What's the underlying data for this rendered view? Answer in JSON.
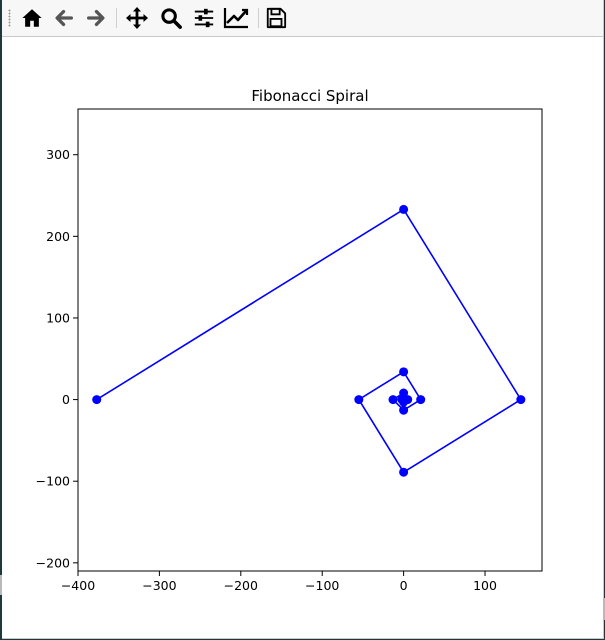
{
  "toolbar": {
    "buttons": [
      {
        "name": "home",
        "icon": "home-icon"
      },
      {
        "name": "back",
        "icon": "arrow-left-icon"
      },
      {
        "name": "forward",
        "icon": "arrow-right-icon"
      },
      {
        "name": "pan",
        "icon": "move-icon"
      },
      {
        "name": "zoom",
        "icon": "magnifier-icon"
      },
      {
        "name": "configure-subplots",
        "icon": "sliders-icon"
      },
      {
        "name": "edit-axis",
        "icon": "line-chart-icon"
      },
      {
        "name": "save",
        "icon": "floppy-disk-icon"
      }
    ]
  },
  "colors": {
    "series": "#0000ff",
    "axes": "#000000",
    "background": "#ffffff"
  },
  "chart_data": {
    "type": "line",
    "title": "Fibonacci Spiral",
    "xlabel": "",
    "ylabel": "",
    "xlim": [
      -400,
      170
    ],
    "ylim": [
      -210,
      356
    ],
    "xticks": [
      -400,
      -300,
      -200,
      -100,
      0,
      100
    ],
    "yticks": [
      -200,
      -100,
      0,
      100,
      200,
      300
    ],
    "xtick_labels": [
      "−400",
      "−300",
      "−200",
      "−100",
      "0",
      "100"
    ],
    "ytick_labels": [
      "−200",
      "−100",
      "0",
      "100",
      "200",
      "300"
    ],
    "grid": false,
    "series": [
      {
        "marker": "circle",
        "x": [
          0,
          1,
          0,
          -2,
          0,
          5,
          0,
          -13,
          0,
          21,
          0,
          -55,
          0,
          144,
          0,
          -377
        ],
        "y": [
          0,
          0,
          1,
          0,
          -3,
          0,
          8,
          0,
          -13,
          0,
          34,
          0,
          -89,
          0,
          233,
          0
        ]
      }
    ]
  }
}
